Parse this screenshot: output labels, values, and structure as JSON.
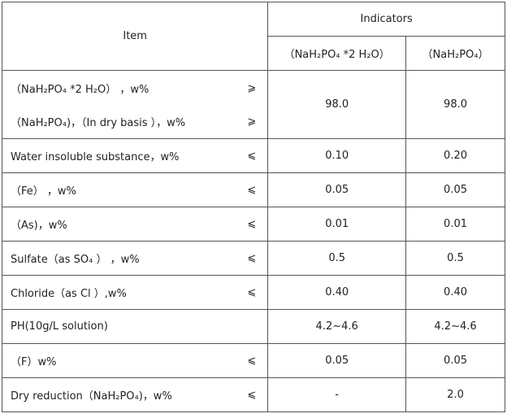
{
  "header": {
    "item": "Item",
    "indicators": "Indicators",
    "columns": [
      "（NaH₂PO₄ *2 H₂O）",
      "（NaH₂PO₄）"
    ]
  },
  "rows": [
    {
      "items": [
        {
          "label": "（NaH₂PO₄ *2 H₂O） ，w%",
          "symbol": "⩾"
        },
        {
          "label": "（NaH₂PO₄)，（In dry basis ），w%",
          "symbol": "⩾"
        }
      ],
      "values": [
        "98.0",
        "98.0"
      ]
    },
    {
      "items": [
        {
          "label": "Water insoluble substance，w%",
          "symbol": "⩽"
        }
      ],
      "values": [
        "0.10",
        "0.20"
      ]
    },
    {
      "items": [
        {
          "label": "（Fe） ，w%",
          "symbol": "⩽"
        }
      ],
      "values": [
        "0.05",
        "0.05"
      ]
    },
    {
      "items": [
        {
          "label": "（As)，w%",
          "symbol": "⩽"
        }
      ],
      "values": [
        "0.01",
        "0.01"
      ]
    },
    {
      "items": [
        {
          "label": "Sulfate（as SO₄ ） ，w%",
          "symbol": "⩽"
        }
      ],
      "values": [
        "0.5",
        "0.5"
      ]
    },
    {
      "items": [
        {
          "label": "Chloride（as Cl ）,w%",
          "symbol": "⩽"
        }
      ],
      "values": [
        "0.40",
        "0.40"
      ]
    },
    {
      "items": [
        {
          "label": "PH(10g/L solution)"
        }
      ],
      "values": [
        "4.2~4.6",
        "4.2~4.6"
      ]
    },
    {
      "items": [
        {
          "label": "（F）w%",
          "symbol": "⩽"
        }
      ],
      "values": [
        "0.05",
        "0.05"
      ]
    },
    {
      "items": [
        {
          "label": "Dry reduction（NaH₂PO₄)，w%",
          "symbol": "⩽"
        }
      ],
      "values": [
        "-",
        "2.0"
      ]
    }
  ]
}
